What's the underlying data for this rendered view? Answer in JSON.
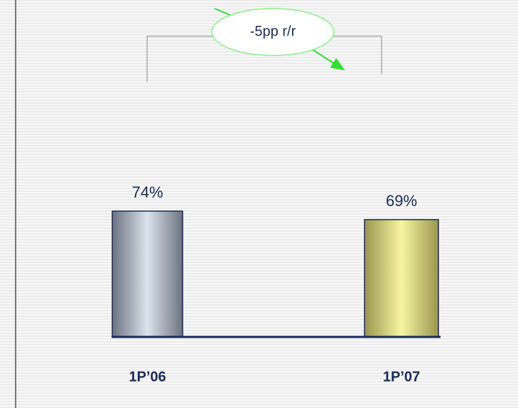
{
  "chart_data": {
    "type": "bar",
    "annotation": "-5pp r/r",
    "categories": [
      "1P’06",
      "1P’07"
    ],
    "values": [
      74,
      69
    ],
    "value_labels": [
      "74%",
      "69%"
    ],
    "colors": [
      "#dbe4ec",
      "#f6f6a2"
    ]
  }
}
